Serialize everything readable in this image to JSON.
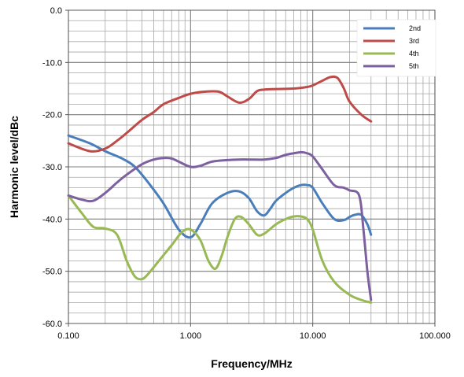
{
  "chart_data": {
    "type": "line",
    "title": "",
    "xlabel": "Frequency/MHz",
    "ylabel": "Harmonic level/dBc",
    "x_scale": "log",
    "xlim": [
      0.1,
      100
    ],
    "ylim": [
      -60,
      0
    ],
    "x_ticks": [
      0.1,
      1,
      10,
      100
    ],
    "x_tick_labels": [
      "0.100",
      "1.000",
      "10.000",
      "100.000"
    ],
    "y_ticks": [
      0,
      -10,
      -20,
      -30,
      -40,
      -50,
      -60
    ],
    "y_tick_labels": [
      "0.0",
      "-10.0",
      "-20.0",
      "-30.0",
      "-40.0",
      "-50.0",
      "-60.0"
    ],
    "grid": true,
    "legend_position": "top-right",
    "series": [
      {
        "name": "2nd",
        "color": "#4a7ebb",
        "x": [
          0.1,
          0.15,
          0.2,
          0.28,
          0.35,
          0.45,
          0.6,
          0.8,
          1.0,
          1.2,
          1.5,
          2.0,
          2.5,
          3.0,
          3.5,
          4.0,
          4.5,
          5.0,
          6.0,
          7.0,
          8.0,
          9.0,
          10.0,
          12.0,
          15.0,
          18.0,
          20.0,
          22.0,
          25.0,
          28.0,
          30.0
        ],
        "y": [
          -24,
          -25.5,
          -27,
          -28.5,
          -30,
          -33,
          -37,
          -42,
          -43.5,
          -41,
          -37,
          -35,
          -34.7,
          -36,
          -38.5,
          -39.3,
          -38,
          -36.5,
          -35,
          -34,
          -33.5,
          -33.5,
          -34,
          -37,
          -40,
          -40.2,
          -39.6,
          -39.2,
          -39.2,
          -41,
          -43
        ]
      },
      {
        "name": "3rd",
        "color": "#be4b48",
        "x": [
          0.1,
          0.15,
          0.2,
          0.25,
          0.3,
          0.4,
          0.5,
          0.6,
          0.8,
          1.0,
          1.3,
          1.7,
          2.0,
          2.5,
          3.0,
          3.5,
          4.0,
          5.0,
          7.0,
          9.0,
          10.0,
          12.0,
          14.0,
          16.0,
          18.0,
          20.0,
          25.0,
          30.0
        ],
        "y": [
          -25.5,
          -27,
          -26.5,
          -25,
          -23.5,
          -21,
          -19.5,
          -18,
          -16.8,
          -16,
          -15.6,
          -15.6,
          -16.5,
          -17.7,
          -17,
          -15.5,
          -15.2,
          -15.1,
          -15,
          -14.7,
          -14.4,
          -13.5,
          -12.8,
          -13,
          -15,
          -17.5,
          -20,
          -21.3
        ]
      },
      {
        "name": "4th",
        "color": "#98b954",
        "x": [
          0.1,
          0.13,
          0.16,
          0.2,
          0.25,
          0.3,
          0.35,
          0.4,
          0.45,
          0.55,
          0.7,
          0.85,
          1.0,
          1.2,
          1.4,
          1.6,
          1.8,
          2.0,
          2.3,
          2.6,
          3.0,
          3.5,
          4.0,
          5.0,
          6.0,
          7.0,
          8.0,
          9.0,
          10.0,
          12.0,
          15.0,
          20.0,
          25.0,
          30.0
        ],
        "y": [
          -35.5,
          -39,
          -41.5,
          -41.8,
          -43,
          -48,
          -51,
          -51.5,
          -50.5,
          -48,
          -45,
          -42.5,
          -42,
          -44,
          -48,
          -49.5,
          -47,
          -43.5,
          -40,
          -39.6,
          -41,
          -43,
          -42.8,
          -41,
          -40,
          -39.5,
          -39.5,
          -40,
          -42,
          -48,
          -52,
          -54.5,
          -55.5,
          -56
        ]
      },
      {
        "name": "5th",
        "color": "#7d60a0",
        "x": [
          0.1,
          0.13,
          0.16,
          0.2,
          0.25,
          0.3,
          0.4,
          0.5,
          0.6,
          0.7,
          0.8,
          1.0,
          1.2,
          1.5,
          2.0,
          2.5,
          3.0,
          4.0,
          5.0,
          6.0,
          7.0,
          8.0,
          9.0,
          10.0,
          12.0,
          15.0,
          18.0,
          20.0,
          24.0,
          26.0,
          28.0,
          30.0
        ],
        "y": [
          -35.5,
          -36.3,
          -36.5,
          -35,
          -33,
          -31.5,
          -29.5,
          -28.6,
          -28.3,
          -28.4,
          -29,
          -30,
          -29.8,
          -29,
          -28.7,
          -28.6,
          -28.6,
          -28.6,
          -28.3,
          -27.7,
          -27.4,
          -27.2,
          -27.4,
          -28,
          -30.5,
          -33.5,
          -34,
          -34.5,
          -35.5,
          -42,
          -50,
          -55.5
        ]
      }
    ]
  }
}
